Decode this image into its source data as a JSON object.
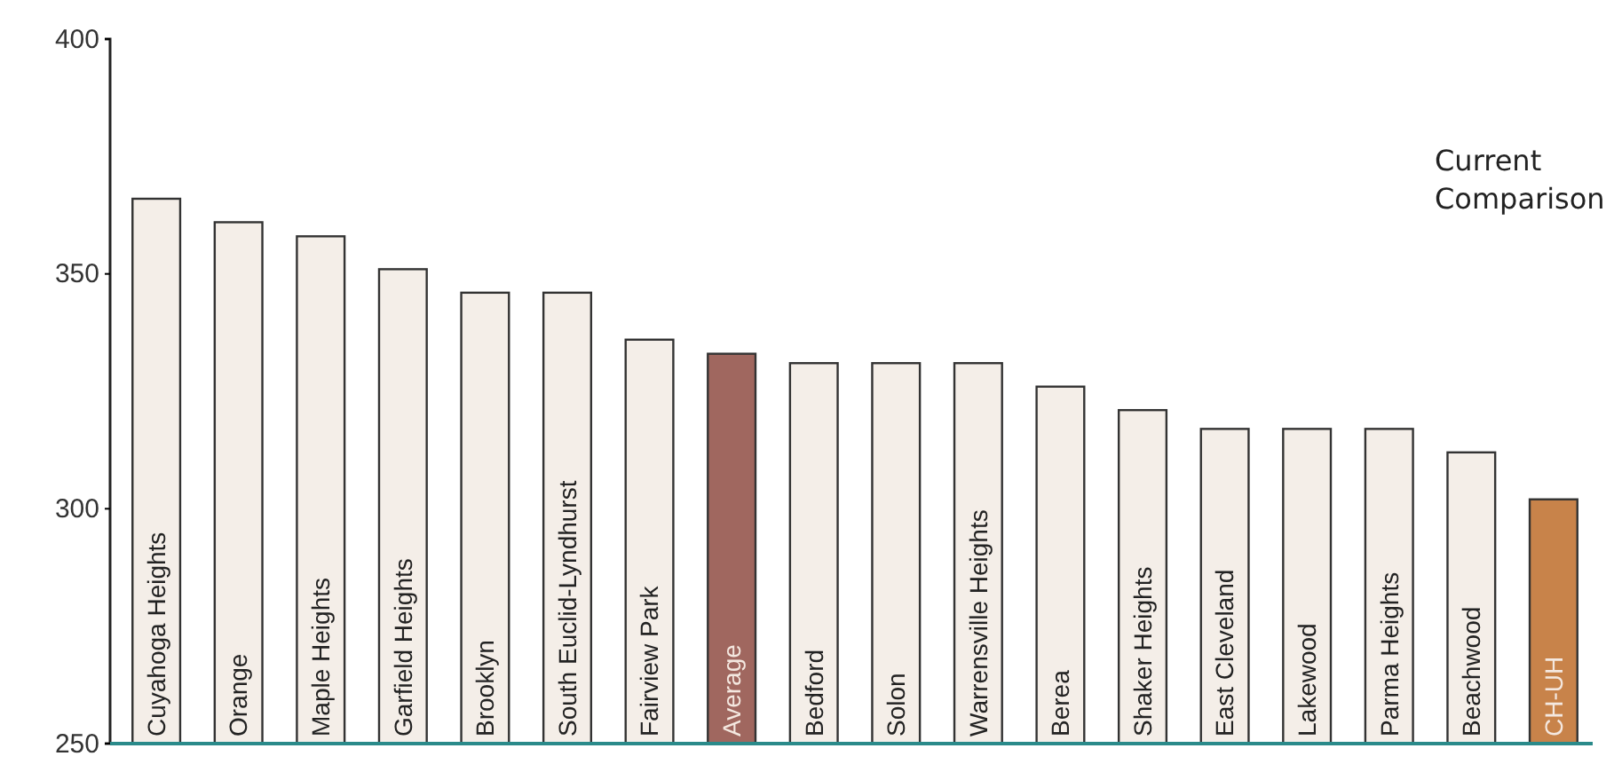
{
  "chart_data": {
    "type": "bar",
    "annotations": [
      "Current Comparison"
    ],
    "categories": [
      "Cuyahoga Heights",
      "Orange",
      "Maple Heights",
      "Garfield Heights",
      "Brooklyn",
      "South Euclid-Lyndhurst",
      "Fairview Park",
      "Average",
      "Bedford",
      "Solon",
      "Warrensville Heights",
      "Berea",
      "Shaker Heights",
      "East Cleveland",
      "Lakewood",
      "Parma Heights",
      "Beachwood",
      "CH-UH"
    ],
    "values": [
      366,
      361,
      358,
      351,
      346,
      346,
      336,
      333,
      331,
      331,
      331,
      326,
      321,
      317,
      317,
      317,
      312,
      302
    ],
    "colors": [
      "#f4eee8",
      "#f4eee8",
      "#f4eee8",
      "#f4eee8",
      "#f4eee8",
      "#f4eee8",
      "#f4eee8",
      "#a0675f",
      "#f4eee8",
      "#f4eee8",
      "#f4eee8",
      "#f4eee8",
      "#f4eee8",
      "#f4eee8",
      "#f4eee8",
      "#f4eee8",
      "#f4eee8",
      "#c8834a"
    ],
    "ylim": [
      250,
      400
    ],
    "yticks": [
      250,
      300,
      350,
      400
    ]
  }
}
